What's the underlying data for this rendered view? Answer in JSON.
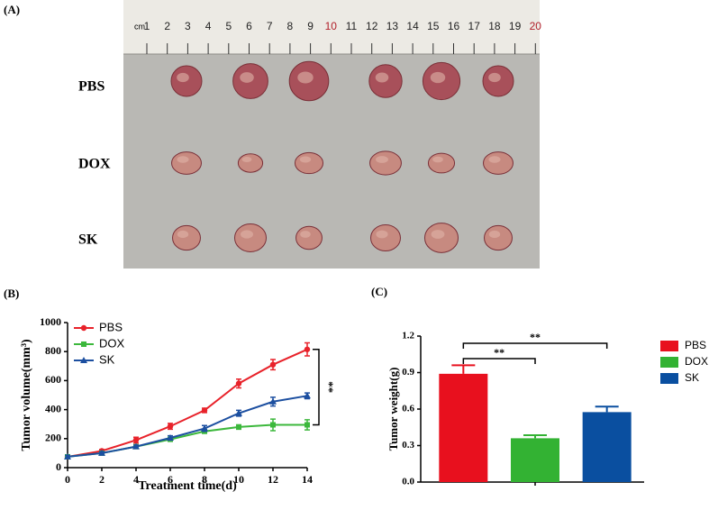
{
  "figure": {
    "panel_a": {
      "label": "(A)",
      "ruler_unit": "cm",
      "ruler_numbers": [
        1,
        2,
        3,
        4,
        5,
        6,
        7,
        8,
        9,
        10,
        11,
        12,
        13,
        14,
        15,
        16,
        17,
        18,
        19,
        20
      ],
      "groups": [
        "PBS",
        "DOX",
        "SK"
      ]
    }
  },
  "chart_data": [
    {
      "type": "line",
      "label": "(B)",
      "xlabel": "Treatment time(d)",
      "ylabel": "Tumor volume(mm³)",
      "x": [
        0,
        2,
        4,
        6,
        8,
        10,
        12,
        14
      ],
      "xlim": [
        0,
        14
      ],
      "xticks": [
        0,
        2,
        4,
        6,
        8,
        10,
        12,
        14
      ],
      "ylim": [
        0,
        1000
      ],
      "yticks": [
        0,
        200,
        400,
        600,
        800,
        1000
      ],
      "legend": "upper left",
      "annotation": "**",
      "series": [
        {
          "name": "PBS",
          "color": "#e8222a",
          "marker": "circle",
          "values": [
            75,
            115,
            190,
            285,
            395,
            580,
            710,
            815
          ],
          "errors": [
            10,
            10,
            20,
            20,
            15,
            30,
            35,
            45
          ]
        },
        {
          "name": "DOX",
          "color": "#3cb83c",
          "marker": "square",
          "values": [
            75,
            100,
            145,
            195,
            250,
            280,
            295,
            295
          ],
          "errors": [
            10,
            10,
            10,
            10,
            10,
            15,
            40,
            35
          ]
        },
        {
          "name": "SK",
          "color": "#1c4fa0",
          "marker": "triangle",
          "values": [
            75,
            100,
            145,
            205,
            270,
            375,
            455,
            495
          ],
          "errors": [
            10,
            10,
            10,
            15,
            20,
            20,
            30,
            20
          ]
        }
      ]
    },
    {
      "type": "bar",
      "label": "(C)",
      "ylabel": "Tumor weight(g)",
      "categories": [
        null,
        null,
        null
      ],
      "ylim": [
        0,
        1.2
      ],
      "yticks": [
        {
          "value": 0,
          "label": "0.0"
        },
        0.3,
        0.6,
        0.9,
        1.2
      ],
      "legend": "right",
      "annotations": [
        "**",
        "**"
      ],
      "series": [
        {
          "name": "PBS",
          "color": "#e8101e",
          "values": [
            0.89,
            null,
            null
          ],
          "errors": [
            0.07,
            null,
            null
          ]
        },
        {
          "name": "DOX",
          "color": "#33b233",
          "values": [
            null,
            0.36,
            null
          ],
          "errors": [
            null,
            0.025,
            null
          ]
        },
        {
          "name": "SK",
          "color": "#0a4fa0",
          "values": [
            null,
            null,
            0.575
          ],
          "errors": [
            null,
            null,
            0.045
          ]
        }
      ]
    }
  ]
}
